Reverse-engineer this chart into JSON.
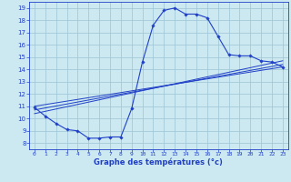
{
  "xlabel": "Graphe des températures (°c)",
  "xlim": [
    -0.5,
    23.5
  ],
  "ylim": [
    7.5,
    19.5
  ],
  "xticks": [
    0,
    1,
    2,
    3,
    4,
    5,
    6,
    7,
    8,
    9,
    10,
    11,
    12,
    13,
    14,
    15,
    16,
    17,
    18,
    19,
    20,
    21,
    22,
    23
  ],
  "yticks": [
    8,
    9,
    10,
    11,
    12,
    13,
    14,
    15,
    16,
    17,
    18,
    19
  ],
  "bg_color": "#cce8f0",
  "line_color": "#2040c8",
  "grid_color": "#9cc4d4",
  "main_x": [
    0,
    1,
    2,
    3,
    4,
    5,
    6,
    7,
    8,
    9,
    10,
    11,
    12,
    13,
    14,
    15,
    16,
    17,
    18,
    19,
    20,
    21,
    22,
    23
  ],
  "main_y": [
    10.9,
    10.2,
    9.6,
    9.1,
    9.0,
    8.4,
    8.4,
    8.5,
    8.5,
    10.8,
    14.6,
    17.6,
    18.8,
    19.0,
    18.5,
    18.5,
    18.2,
    16.7,
    15.2,
    15.1,
    15.1,
    14.7,
    14.6,
    14.2
  ],
  "line2_x": [
    0,
    23
  ],
  "line2_y": [
    11.0,
    14.2
  ],
  "line3_x": [
    0,
    23
  ],
  "line3_y": [
    10.7,
    14.4
  ],
  "line4_x": [
    0,
    23
  ],
  "line4_y": [
    10.4,
    14.7
  ]
}
